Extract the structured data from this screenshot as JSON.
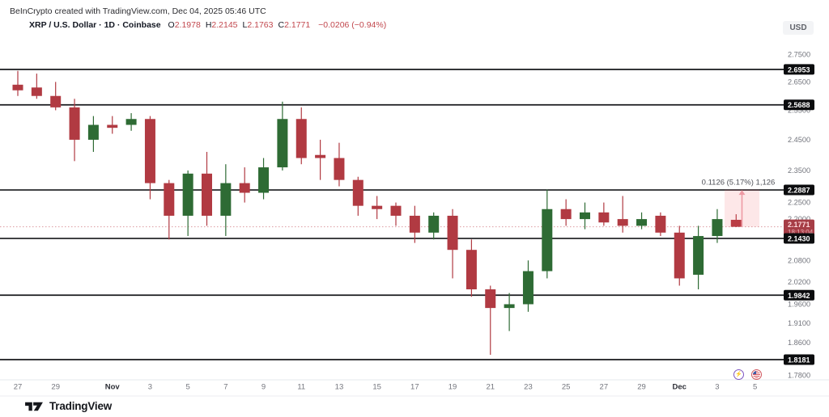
{
  "header": {
    "attribution": "BeInCrypto created with TradingView.com, Dec 04, 2025 05:46 UTC",
    "symbol": "XRP / U.S. Dollar · 1D · Coinbase",
    "ohlc": [
      {
        "label": "O",
        "value": "2.1978"
      },
      {
        "label": "H",
        "value": "2.2145"
      },
      {
        "label": "L",
        "value": "2.1763"
      },
      {
        "label": "C",
        "value": "2.1771"
      }
    ],
    "change": "−0.0206 (−0.94%)"
  },
  "icons": {
    "lightning": "⚡"
  },
  "footer": {
    "brand": "TradingView"
  },
  "chart_data": {
    "type": "candlestick",
    "symbol": "XRP / U.S. Dollar",
    "interval": "1D",
    "exchange": "Coinbase",
    "currency": "USD",
    "scale": "log",
    "grid": "off",
    "colors": {
      "up": "#2e6b34",
      "down": "#b13a42",
      "level_line": "#17181c",
      "level_badge_bg": "#0b0c0e",
      "current_badge_bg": "#a63d46",
      "measure_pink": "#f2545f"
    },
    "price_range_visible": {
      "top": 2.79,
      "bottom": 1.77
    },
    "y_ticks": [
      "2.7500",
      "2.6500",
      "2.5500",
      "2.4500",
      "2.3500",
      "2.2500",
      "2.2000",
      "2.0800",
      "2.0200",
      "1.9600",
      "1.9100",
      "1.8600",
      "1.7800"
    ],
    "horizontal_levels": [
      "2.6953",
      "2.5688",
      "2.2887",
      "2.1430",
      "1.9842",
      "1.8181"
    ],
    "current": {
      "price": "2.1771",
      "countdown": "18:13:04"
    },
    "measurement": {
      "text": "0.1126 (5.17%) 1,126",
      "from_price": 2.1771,
      "to_price": 2.2897
    },
    "x_ticks": [
      {
        "label": "27",
        "day": 0
      },
      {
        "label": "29",
        "day": 2
      },
      {
        "label": "Nov",
        "day": 5,
        "bold": true
      },
      {
        "label": "3",
        "day": 7
      },
      {
        "label": "5",
        "day": 9
      },
      {
        "label": "7",
        "day": 11
      },
      {
        "label": "9",
        "day": 13
      },
      {
        "label": "11",
        "day": 15
      },
      {
        "label": "13",
        "day": 17
      },
      {
        "label": "15",
        "day": 19
      },
      {
        "label": "17",
        "day": 21
      },
      {
        "label": "19",
        "day": 23
      },
      {
        "label": "21",
        "day": 25
      },
      {
        "label": "23",
        "day": 27
      },
      {
        "label": "25",
        "day": 29
      },
      {
        "label": "27",
        "day": 31
      },
      {
        "label": "29",
        "day": 33
      },
      {
        "label": "Dec",
        "day": 35,
        "bold": true
      },
      {
        "label": "3",
        "day": 37
      },
      {
        "label": "5",
        "day": 39
      }
    ],
    "candles": [
      {
        "t": "Oct 27",
        "o": 2.64,
        "h": 2.69,
        "l": 2.6,
        "c": 2.62
      },
      {
        "t": "Oct 28",
        "o": 2.63,
        "h": 2.68,
        "l": 2.59,
        "c": 2.6
      },
      {
        "t": "Oct 29",
        "o": 2.6,
        "h": 2.65,
        "l": 2.55,
        "c": 2.56
      },
      {
        "t": "Oct 30",
        "o": 2.56,
        "h": 2.59,
        "l": 2.38,
        "c": 2.45
      },
      {
        "t": "Oct 31",
        "o": 2.45,
        "h": 2.53,
        "l": 2.41,
        "c": 2.5
      },
      {
        "t": "Nov 1",
        "o": 2.5,
        "h": 2.53,
        "l": 2.47,
        "c": 2.49
      },
      {
        "t": "Nov 2",
        "o": 2.5,
        "h": 2.54,
        "l": 2.48,
        "c": 2.52
      },
      {
        "t": "Nov 3",
        "o": 2.52,
        "h": 2.53,
        "l": 2.26,
        "c": 2.31
      },
      {
        "t": "Nov 4",
        "o": 2.31,
        "h": 2.32,
        "l": 2.14,
        "c": 2.21
      },
      {
        "t": "Nov 5",
        "o": 2.21,
        "h": 2.35,
        "l": 2.15,
        "c": 2.34
      },
      {
        "t": "Nov 6",
        "o": 2.34,
        "h": 2.41,
        "l": 2.18,
        "c": 2.21
      },
      {
        "t": "Nov 7",
        "o": 2.21,
        "h": 2.37,
        "l": 2.15,
        "c": 2.31
      },
      {
        "t": "Nov 8",
        "o": 2.31,
        "h": 2.36,
        "l": 2.25,
        "c": 2.28
      },
      {
        "t": "Nov 9",
        "o": 2.28,
        "h": 2.39,
        "l": 2.26,
        "c": 2.36
      },
      {
        "t": "Nov 10",
        "o": 2.36,
        "h": 2.58,
        "l": 2.35,
        "c": 2.52
      },
      {
        "t": "Nov 11",
        "o": 2.52,
        "h": 2.56,
        "l": 2.37,
        "c": 2.39
      },
      {
        "t": "Nov 12",
        "o": 2.4,
        "h": 2.45,
        "l": 2.32,
        "c": 2.39
      },
      {
        "t": "Nov 13",
        "o": 2.39,
        "h": 2.44,
        "l": 2.3,
        "c": 2.32
      },
      {
        "t": "Nov 14",
        "o": 2.32,
        "h": 2.33,
        "l": 2.21,
        "c": 2.24
      },
      {
        "t": "Nov 15",
        "o": 2.24,
        "h": 2.27,
        "l": 2.2,
        "c": 2.23
      },
      {
        "t": "Nov 16",
        "o": 2.24,
        "h": 2.25,
        "l": 2.18,
        "c": 2.21
      },
      {
        "t": "Nov 17",
        "o": 2.21,
        "h": 2.24,
        "l": 2.13,
        "c": 2.16
      },
      {
        "t": "Nov 18",
        "o": 2.16,
        "h": 2.22,
        "l": 2.14,
        "c": 2.21
      },
      {
        "t": "Nov 19",
        "o": 2.21,
        "h": 2.23,
        "l": 2.03,
        "c": 2.11
      },
      {
        "t": "Nov 20",
        "o": 2.11,
        "h": 2.14,
        "l": 1.98,
        "c": 2.0
      },
      {
        "t": "Nov 21",
        "o": 2.0,
        "h": 2.01,
        "l": 1.83,
        "c": 1.95
      },
      {
        "t": "Nov 22",
        "o": 1.95,
        "h": 1.99,
        "l": 1.89,
        "c": 1.96
      },
      {
        "t": "Nov 23",
        "o": 1.96,
        "h": 2.08,
        "l": 1.94,
        "c": 2.05
      },
      {
        "t": "Nov 24",
        "o": 2.05,
        "h": 2.29,
        "l": 2.03,
        "c": 2.23
      },
      {
        "t": "Nov 25",
        "o": 2.23,
        "h": 2.26,
        "l": 2.18,
        "c": 2.2
      },
      {
        "t": "Nov 26",
        "o": 2.2,
        "h": 2.25,
        "l": 2.17,
        "c": 2.22
      },
      {
        "t": "Nov 27",
        "o": 2.22,
        "h": 2.25,
        "l": 2.18,
        "c": 2.19
      },
      {
        "t": "Nov 28",
        "o": 2.2,
        "h": 2.27,
        "l": 2.16,
        "c": 2.18
      },
      {
        "t": "Nov 29",
        "o": 2.18,
        "h": 2.22,
        "l": 2.17,
        "c": 2.2
      },
      {
        "t": "Nov 30",
        "o": 2.21,
        "h": 2.22,
        "l": 2.15,
        "c": 2.16
      },
      {
        "t": "Dec 1",
        "o": 2.16,
        "h": 2.18,
        "l": 2.01,
        "c": 2.03
      },
      {
        "t": "Dec 2",
        "o": 2.04,
        "h": 2.18,
        "l": 2.0,
        "c": 2.15
      },
      {
        "t": "Dec 3",
        "o": 2.15,
        "h": 2.23,
        "l": 2.13,
        "c": 2.2
      },
      {
        "t": "Dec 4",
        "o": 2.1978,
        "h": 2.2145,
        "l": 2.1763,
        "c": 2.1771
      }
    ]
  }
}
